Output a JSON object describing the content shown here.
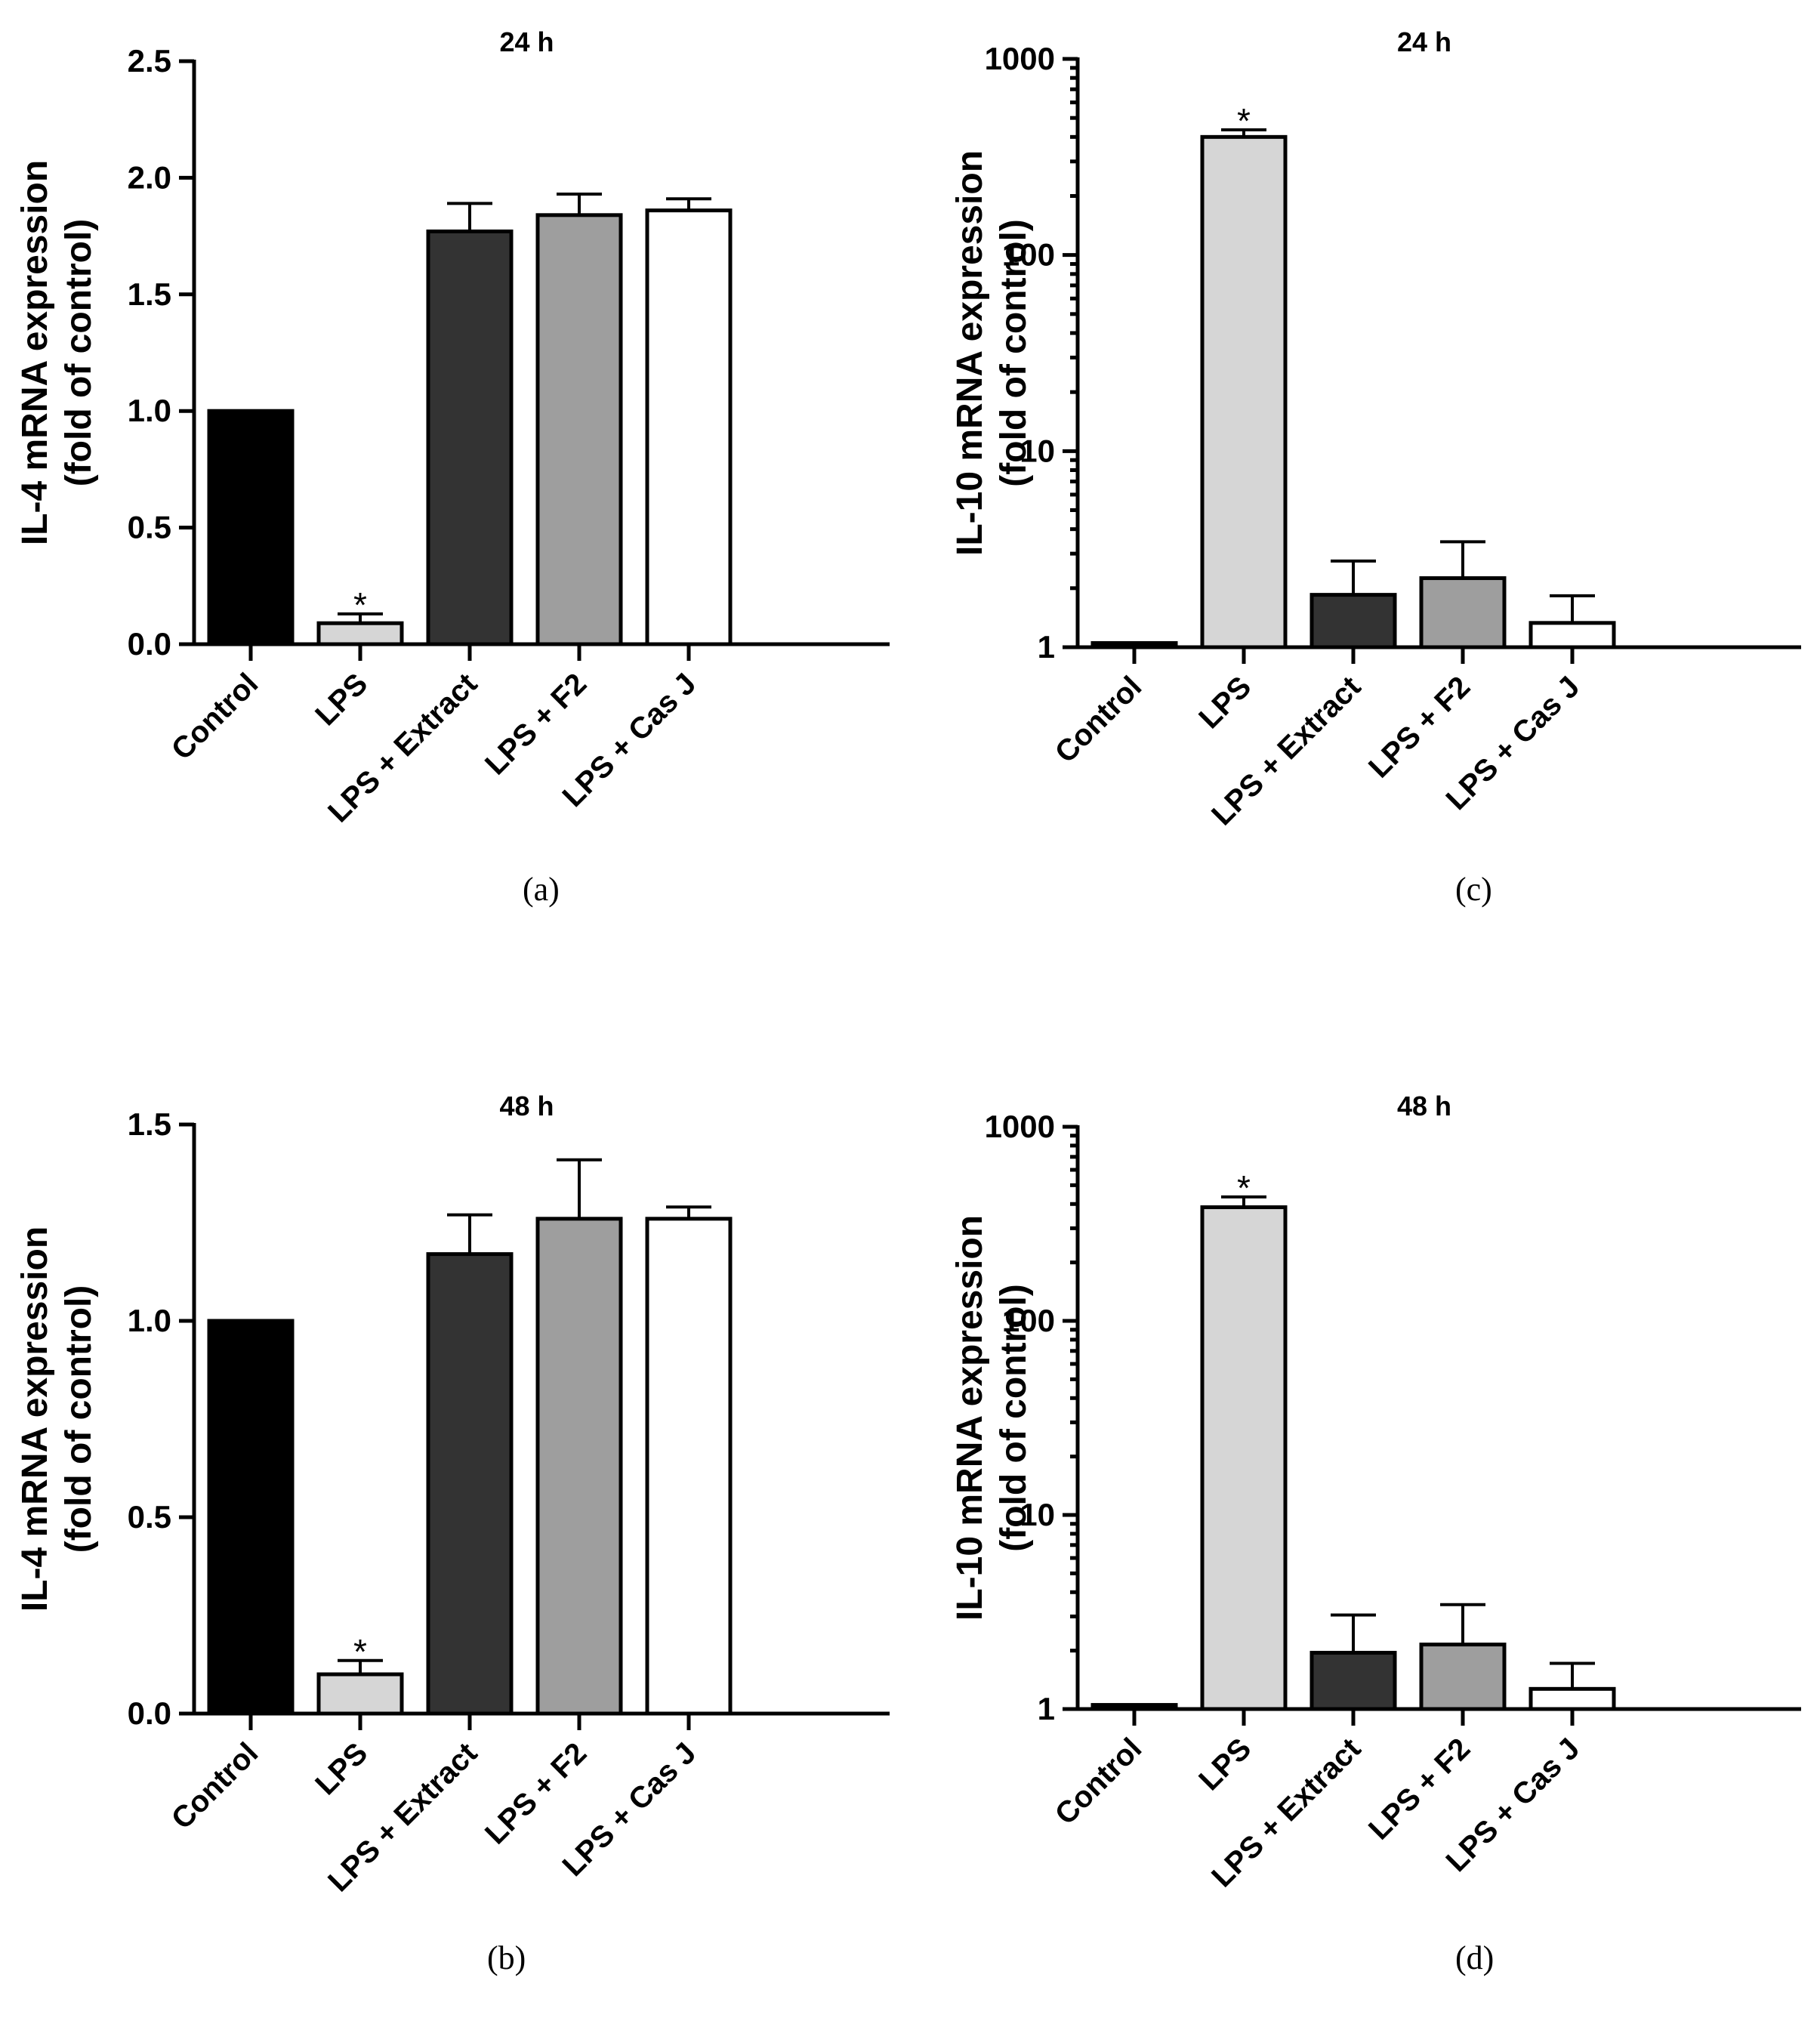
{
  "colors": {
    "control": "#000000",
    "lps": "#d6d6d6",
    "lps_extract": "#333333",
    "lps_f2": "#9e9e9e",
    "lps_casj": "#ffffff"
  },
  "chart_data": [
    {
      "id": "a",
      "type": "bar",
      "panel_label": "(a)",
      "title": "24 h",
      "ylabel_lines": [
        "IL-4 mRNA expression",
        "(fold of control)"
      ],
      "scale": "linear",
      "ylim": [
        0,
        2.5
      ],
      "yticks": [
        0.0,
        0.5,
        1.0,
        1.5,
        2.0,
        2.5
      ],
      "ytick_labels": [
        "0.0",
        "0.5",
        "1.0",
        "1.5",
        "2.0",
        "2.5"
      ],
      "categories": [
        "Control",
        "LPS",
        "LPS + Extract",
        "LPS + F2",
        "LPS + Cas J"
      ],
      "values": [
        1.0,
        0.09,
        1.77,
        1.84,
        1.86
      ],
      "errors": [
        0,
        0.04,
        0.12,
        0.09,
        0.05
      ],
      "significance": [
        "",
        "*",
        "",
        "",
        ""
      ]
    },
    {
      "id": "b",
      "type": "bar",
      "panel_label": "(b)",
      "title": "48 h",
      "ylabel_lines": [
        "IL-4 mRNA expression",
        "(fold of control)"
      ],
      "scale": "linear",
      "ylim": [
        0,
        1.5
      ],
      "yticks": [
        0.0,
        0.5,
        1.0,
        1.5
      ],
      "ytick_labels": [
        "0.0",
        "0.5",
        "1.0",
        "1.5"
      ],
      "categories": [
        "Control",
        "LPS",
        "LPS + Extract",
        "LPS + F2",
        "LPS + Cas J"
      ],
      "values": [
        1.0,
        0.1,
        1.17,
        1.26,
        1.26
      ],
      "errors": [
        0,
        0.035,
        0.1,
        0.15,
        0.03
      ],
      "significance": [
        "",
        "*",
        "",
        "",
        ""
      ]
    },
    {
      "id": "c",
      "type": "bar",
      "panel_label": "(c)",
      "title": "24 h",
      "ylabel_lines": [
        "IL-10 mRNA expression",
        "(fold of control)"
      ],
      "scale": "log",
      "ylim": [
        1,
        1000
      ],
      "yticks": [
        1,
        10,
        100,
        1000
      ],
      "ytick_labels": [
        "1",
        "10",
        "100",
        "1000"
      ],
      "categories": [
        "Control",
        "LPS",
        "LPS + Extract",
        "LPS + F2",
        "LPS + Cas J"
      ],
      "values": [
        1.05,
        400,
        1.85,
        2.25,
        1.33
      ],
      "errors": [
        0,
        35,
        0.9,
        1.2,
        0.5
      ],
      "significance": [
        "",
        "*",
        "",
        "",
        ""
      ]
    },
    {
      "id": "d",
      "type": "bar",
      "panel_label": "(d)",
      "title": "48 h",
      "ylabel_lines": [
        "IL-10 mRNA expression",
        "(fold of control)"
      ],
      "scale": "log",
      "ylim": [
        1,
        1000
      ],
      "yticks": [
        1,
        10,
        100,
        1000
      ],
      "ytick_labels": [
        "1",
        "10",
        "100",
        "1000"
      ],
      "categories": [
        "Control",
        "LPS",
        "LPS + Extract",
        "LPS + F2",
        "LPS + Cas J"
      ],
      "values": [
        1.05,
        385,
        1.95,
        2.15,
        1.27
      ],
      "errors": [
        0,
        50,
        1.1,
        1.3,
        0.45
      ],
      "significance": [
        "",
        "*",
        "",
        "",
        ""
      ]
    }
  ]
}
